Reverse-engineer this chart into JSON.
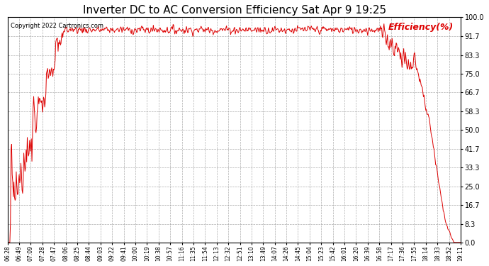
{
  "title": "Inverter DC to AC Conversion Efficiency Sat Apr 9 19:25",
  "copyright": "Copyright 2022 Cartronics.com",
  "legend_label": "Efficiency(%)",
  "line_color": "#dd0000",
  "copyright_color": "#000000",
  "legend_color": "#dd0000",
  "background_color": "#ffffff",
  "grid_color": "#999999",
  "yticks": [
    0.0,
    8.3,
    16.7,
    25.0,
    33.3,
    41.7,
    50.0,
    58.3,
    66.7,
    75.0,
    83.3,
    91.7,
    100.0
  ],
  "ylim": [
    0.0,
    100.0
  ],
  "title_fontsize": 11,
  "xtick_labels": [
    "06:28",
    "06:49",
    "07:09",
    "07:28",
    "07:47",
    "08:06",
    "08:25",
    "08:44",
    "09:03",
    "09:22",
    "09:41",
    "10:00",
    "10:19",
    "10:38",
    "10:57",
    "11:16",
    "11:35",
    "11:54",
    "12:13",
    "12:32",
    "12:51",
    "13:10",
    "13:49",
    "14:07",
    "14:26",
    "14:45",
    "15:04",
    "15:23",
    "15:42",
    "16:01",
    "16:20",
    "16:39",
    "16:58",
    "17:17",
    "17:36",
    "17:55",
    "18:14",
    "18:33",
    "18:52",
    "19:11"
  ]
}
